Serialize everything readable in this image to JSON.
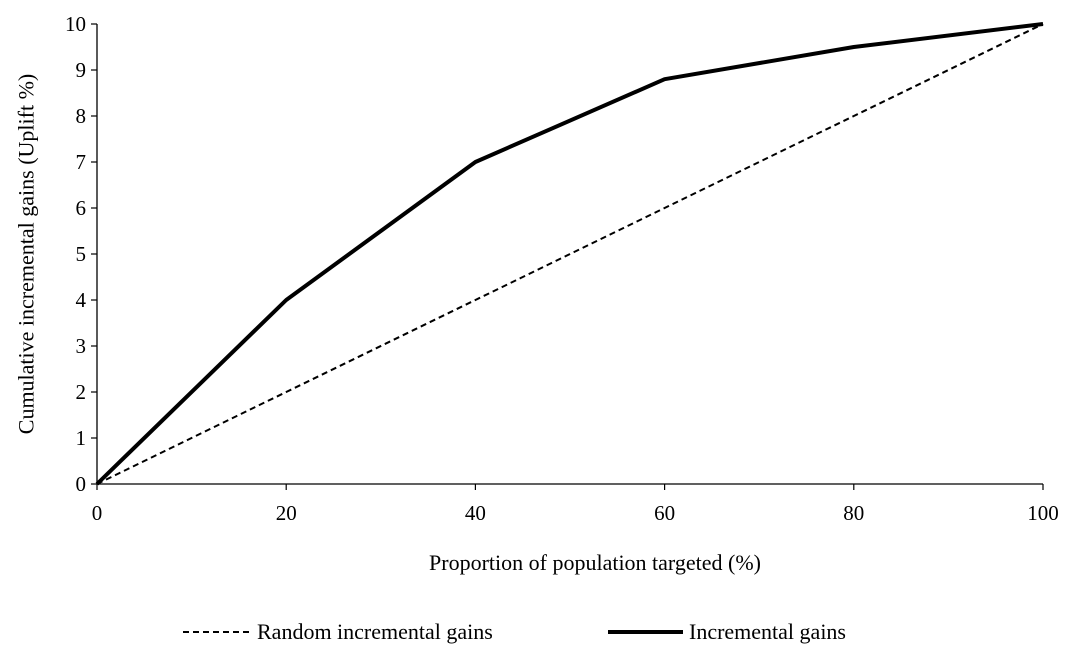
{
  "chart_data": {
    "type": "line",
    "title": "",
    "xlabel": "Proportion of population  targeted (%)",
    "ylabel": "Cumulative  incremental gains  (Uplift %)",
    "xlim": [
      0,
      100
    ],
    "ylim": [
      0,
      10
    ],
    "x_ticks": [
      0,
      20,
      40,
      60,
      80,
      100
    ],
    "y_ticks": [
      0,
      1,
      2,
      3,
      4,
      5,
      6,
      7,
      8,
      9,
      10
    ],
    "x_tick_labels": [
      "0",
      "20",
      "40",
      "60",
      "80",
      "100"
    ],
    "y_tick_labels": [
      "0",
      "1",
      "2",
      "3",
      "4",
      "5",
      "6",
      "7",
      "8",
      "9",
      "10"
    ],
    "grid": false,
    "legend_position": "bottom",
    "series": [
      {
        "name": "Random incremental gains",
        "style": "dashed",
        "color": "#000000",
        "x": [
          0,
          20,
          40,
          60,
          80,
          100
        ],
        "y": [
          0,
          2,
          4,
          6,
          8,
          10
        ]
      },
      {
        "name": "Incremental gains",
        "style": "solid",
        "color": "#000000",
        "x": [
          0,
          20,
          40,
          60,
          80,
          100
        ],
        "y": [
          0,
          4,
          7,
          8.8,
          9.5,
          10
        ]
      }
    ]
  }
}
